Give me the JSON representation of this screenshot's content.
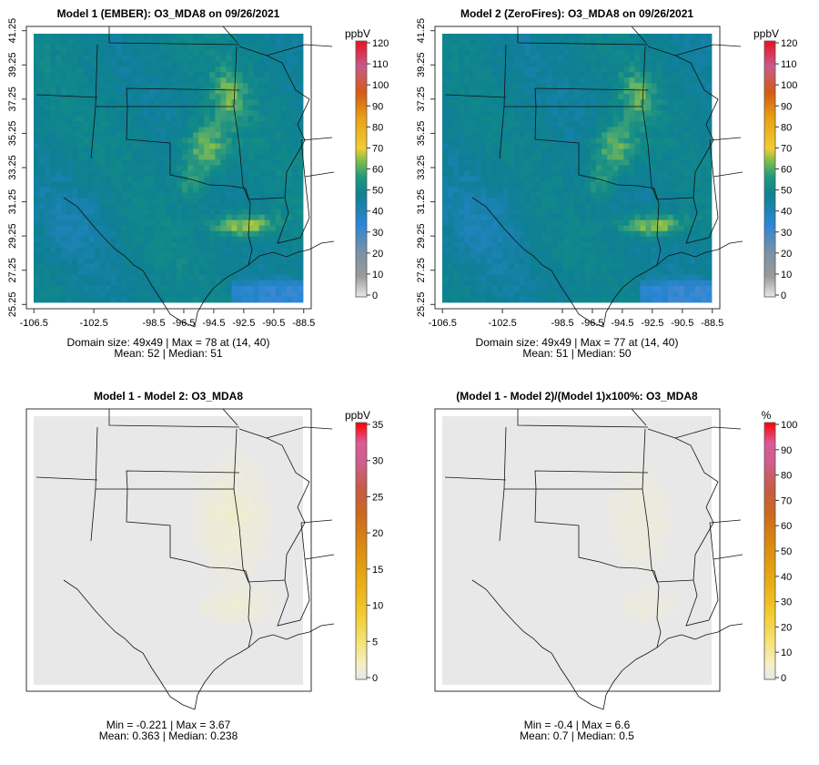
{
  "colors": {
    "diff_ramp": [
      "#e8e8e8",
      "#f5f0c4",
      "#f6e37a",
      "#f3cc32",
      "#e9ac12",
      "#dc8a10",
      "#cd6a1c",
      "#c85a44",
      "#cd5f8a",
      "#dc5a98",
      "#ff0000"
    ],
    "abs_ramp": [
      "#e8e8e8",
      "#9a9a9a",
      "#2d86d8",
      "#1677b8",
      "#0d8291",
      "#1f9a7e",
      "#7dbd4a",
      "#f3cc32",
      "#e8a013",
      "#d65a13",
      "#ee1020"
    ]
  },
  "chart_data": [
    {
      "type": "heatmap",
      "title": "Model 1 (EMBER): O3_MDA8 on 09/26/2021",
      "x_ticks": [
        "-106.5",
        "-102.5",
        "-98.5",
        "-96.5",
        "-94.5",
        "-92.5",
        "-90.5",
        "-88.5"
      ],
      "x_tick_values": [
        -106.5,
        -102.5,
        -98.5,
        -96.5,
        -94.5,
        -92.5,
        -90.5,
        -88.5
      ],
      "y_ticks": [
        "25.25",
        "27.25",
        "29.25",
        "31.25",
        "33.25",
        "35.25",
        "37.25",
        "39.25",
        "41.25"
      ],
      "y_tick_values": [
        25.25,
        27.25,
        29.25,
        31.25,
        33.25,
        35.25,
        37.25,
        39.25,
        41.25
      ],
      "xlim": [
        -107.0,
        -88.0
      ],
      "ylim": [
        25.0,
        41.5
      ],
      "colorbar": {
        "label": "ppbV",
        "ticks": [
          "0",
          "10",
          "20",
          "30",
          "40",
          "50",
          "60",
          "70",
          "80",
          "90",
          "100",
          "110",
          "120"
        ],
        "range": [
          0,
          120
        ]
      },
      "stats": [
        "Domain size: 49x49 | Max = 78 at (14, 40)",
        "Mean: 52 |  Median: 51"
      ],
      "mean": 52,
      "median": 51,
      "max": 78
    },
    {
      "type": "heatmap",
      "title": "Model 2 (ZeroFires): O3_MDA8 on 09/26/2021",
      "x_ticks": [
        "-106.5",
        "-102.5",
        "-98.5",
        "-96.5",
        "-94.5",
        "-92.5",
        "-90.5",
        "-88.5"
      ],
      "x_tick_values": [
        -106.5,
        -102.5,
        -98.5,
        -96.5,
        -94.5,
        -92.5,
        -90.5,
        -88.5
      ],
      "y_ticks": [
        "25.25",
        "27.25",
        "29.25",
        "31.25",
        "33.25",
        "35.25",
        "37.25",
        "39.25",
        "41.25"
      ],
      "y_tick_values": [
        25.25,
        27.25,
        29.25,
        31.25,
        33.25,
        35.25,
        37.25,
        39.25,
        41.25
      ],
      "xlim": [
        -107.0,
        -88.0
      ],
      "ylim": [
        25.0,
        41.5
      ],
      "colorbar": {
        "label": "ppbV",
        "ticks": [
          "0",
          "10",
          "20",
          "30",
          "40",
          "50",
          "60",
          "70",
          "80",
          "90",
          "100",
          "110",
          "120"
        ],
        "range": [
          0,
          120
        ]
      },
      "stats": [
        "Domain size: 49x49 | Max = 77 at (14, 40)",
        "Mean: 51 |  Median: 50"
      ],
      "mean": 51,
      "median": 50,
      "max": 77
    },
    {
      "type": "heatmap",
      "title": "Model 1 - Model 2: O3_MDA8",
      "colorbar": {
        "label": "ppbV",
        "ticks": [
          "0",
          "5",
          "10",
          "15",
          "20",
          "25",
          "30",
          "35"
        ],
        "range": [
          0,
          35
        ]
      },
      "stats": [
        "Min = -0.221 | Max = 3.67",
        "Mean: 0.363 |  Median: 0.238"
      ],
      "min": -0.221,
      "max": 3.67,
      "mean": 0.363,
      "median": 0.238
    },
    {
      "type": "heatmap",
      "title": "(Model 1 - Model 2)/(Model 1)x100%: O3_MDA8",
      "colorbar": {
        "label": "%",
        "ticks": [
          "0",
          "10",
          "20",
          "30",
          "40",
          "50",
          "60",
          "70",
          "80",
          "90",
          "100"
        ],
        "range": [
          0,
          100
        ]
      },
      "stats": [
        "Min = -0.4 | Max = 6.6",
        "Mean: 0.7 |  Median: 0.5"
      ],
      "min": -0.4,
      "max": 6.6,
      "mean": 0.7,
      "median": 0.5
    }
  ]
}
